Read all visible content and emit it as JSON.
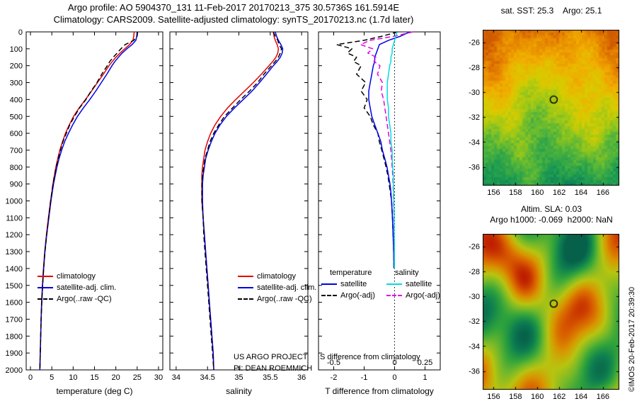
{
  "header": {
    "title_line1": "Argo profile: AO 5904370_131 11-Feb-2017 20170213_375 30.5736S 161.5914E",
    "title_line2": "Climatology: CARS2009. Satellite-adjusted climatology: synTS_20170213.nc (1.7d later)"
  },
  "credit": "©IMOS 20-Feb-2017 20:39:30",
  "project": {
    "line1": "US ARGO PROJECT",
    "line2": "PI: DEAN ROEMMICH"
  },
  "colors": {
    "climatology": "#e60000",
    "satellite": "#0000e6",
    "argo": "#000000",
    "sal_satellite": "#00dcdc",
    "sal_argo": "#e600e6"
  },
  "legends": {
    "profile": [
      "climatology",
      "satellite-adj. clim.",
      "Argo(..raw -QC)"
    ],
    "diff": {
      "col1_header": "temperature",
      "col2_header": "salinity",
      "row1": "satellite",
      "row2": "Argo(-adj)"
    }
  },
  "chart_data": [
    {
      "type": "line",
      "xlabel": "temperature (deg C)",
      "xlim": [
        -1,
        31
      ],
      "ylim": [
        0,
        2000
      ],
      "xticks": [
        0,
        5,
        10,
        15,
        20,
        25,
        30
      ],
      "yticks": [
        0,
        100,
        200,
        300,
        400,
        500,
        600,
        700,
        800,
        900,
        1000,
        1100,
        1200,
        1300,
        1400,
        1500,
        1600,
        1700,
        1800,
        1900,
        2000
      ],
      "depths": [
        0,
        25,
        50,
        75,
        100,
        125,
        150,
        175,
        200,
        250,
        300,
        350,
        400,
        450,
        500,
        550,
        600,
        650,
        700,
        750,
        800,
        850,
        900,
        950,
        1000,
        1100,
        1200,
        1300,
        1400,
        1500,
        1600,
        1700,
        1800,
        1900,
        2000
      ],
      "series": [
        {
          "name": "climatology",
          "color": "climatology",
          "dash": false,
          "values": [
            24.3,
            24.2,
            24.0,
            23.2,
            22.1,
            21.0,
            20.0,
            19.2,
            18.4,
            17.1,
            15.7,
            14.3,
            12.9,
            11.4,
            10.1,
            9.1,
            8.2,
            7.5,
            6.9,
            6.4,
            5.95,
            5.6,
            5.25,
            5.0,
            4.7,
            4.2,
            3.75,
            3.35,
            3.05,
            2.8,
            2.6,
            2.5,
            2.4,
            2.3,
            2.2
          ]
        },
        {
          "name": "satellite-adj. clim.",
          "color": "satellite",
          "dash": false,
          "values": [
            25.0,
            24.9,
            24.7,
            23.8,
            22.6,
            21.5,
            20.6,
            19.8,
            19.1,
            17.9,
            16.6,
            15.3,
            13.9,
            12.4,
            11.0,
            9.9,
            8.9,
            8.0,
            7.3,
            6.7,
            6.2,
            5.8,
            5.4,
            5.1,
            4.8,
            4.3,
            3.8,
            3.4,
            3.1,
            2.85,
            2.65,
            2.5,
            2.4,
            2.3,
            2.2
          ]
        },
        {
          "name": "Argo(..raw -QC)",
          "color": "argo",
          "dash": true,
          "values": [
            25.1,
            25.0,
            24.2,
            22.2,
            21.2,
            20.3,
            19.4,
            18.6,
            18.0,
            16.7,
            15.6,
            14.2,
            13.0,
            11.5,
            10.3,
            9.2,
            8.4,
            7.6,
            7.0,
            6.5,
            6.05,
            5.65,
            5.3,
            5.0,
            4.75,
            4.25,
            3.8,
            3.4,
            3.1,
            2.85,
            2.65,
            2.5,
            2.4,
            2.3,
            2.2
          ]
        }
      ]
    },
    {
      "type": "line",
      "xlabel": "salinity",
      "xlim": [
        33.9,
        36.1
      ],
      "ylim": [
        0,
        2000
      ],
      "xticks": [
        34,
        34.5,
        35,
        35.5,
        36
      ],
      "yticks": [
        0,
        100,
        200,
        300,
        400,
        500,
        600,
        700,
        800,
        900,
        1000,
        1100,
        1200,
        1300,
        1400,
        1500,
        1600,
        1700,
        1800,
        1900,
        2000
      ],
      "depths": [
        0,
        25,
        50,
        75,
        100,
        125,
        150,
        175,
        200,
        250,
        300,
        350,
        400,
        450,
        500,
        550,
        600,
        650,
        700,
        750,
        800,
        850,
        900,
        950,
        1000,
        1100,
        1200,
        1300,
        1400,
        1500,
        1600,
        1700,
        1800,
        1900,
        2000
      ],
      "series": [
        {
          "name": "climatology",
          "color": "climatology",
          "dash": false,
          "values": [
            35.55,
            35.56,
            35.58,
            35.61,
            35.63,
            35.62,
            35.59,
            35.54,
            35.48,
            35.36,
            35.23,
            35.09,
            34.95,
            34.82,
            34.71,
            34.62,
            34.55,
            34.5,
            34.46,
            34.44,
            34.42,
            34.41,
            34.41,
            34.41,
            34.41,
            34.43,
            34.45,
            34.47,
            34.49,
            34.51,
            34.53,
            34.55,
            34.57,
            34.59,
            34.6
          ]
        },
        {
          "name": "satellite-adj. clim.",
          "color": "satellite",
          "dash": false,
          "values": [
            35.58,
            35.6,
            35.63,
            35.67,
            35.7,
            35.69,
            35.66,
            35.61,
            35.55,
            35.44,
            35.33,
            35.21,
            35.07,
            34.93,
            34.8,
            34.7,
            34.62,
            34.56,
            34.51,
            34.47,
            34.45,
            34.43,
            34.42,
            34.42,
            34.42,
            34.43,
            34.45,
            34.47,
            34.49,
            34.51,
            34.53,
            34.55,
            34.57,
            34.59,
            34.6
          ]
        },
        {
          "name": "Argo(..raw -QC)",
          "color": "argo",
          "dash": true,
          "values": [
            35.55,
            35.58,
            35.62,
            35.64,
            35.68,
            35.66,
            35.63,
            35.58,
            35.52,
            35.4,
            35.3,
            35.17,
            35.03,
            34.9,
            34.77,
            34.68,
            34.6,
            34.54,
            34.5,
            34.46,
            34.44,
            34.42,
            34.41,
            34.41,
            34.41,
            34.43,
            34.44,
            34.46,
            34.48,
            34.5,
            34.52,
            34.54,
            34.56,
            34.58,
            34.6
          ]
        }
      ]
    },
    {
      "type": "line",
      "xlabel": "T difference from climatology",
      "s_label": "S difference from climatology",
      "xlim": [
        -2.5,
        1.5
      ],
      "ylim": [
        0,
        2000
      ],
      "xticks": [
        -2,
        -1,
        0,
        1
      ],
      "yticks": [
        0,
        100,
        200,
        300,
        400,
        500,
        600,
        700,
        800,
        900,
        1000,
        1100,
        1200,
        1300,
        1400,
        1500,
        1600,
        1700,
        1800,
        1900,
        2000
      ],
      "s_ticks": [
        -0.5,
        0,
        0.25
      ],
      "s_scale": 4,
      "depths": [
        0,
        25,
        50,
        75,
        100,
        125,
        150,
        175,
        200,
        250,
        300,
        350,
        400,
        450,
        500,
        550,
        600,
        650,
        700,
        750,
        800,
        850,
        900,
        950,
        1000,
        1100,
        1200,
        1300,
        1400
      ],
      "series": [
        {
          "name": "Argo(-adj) T",
          "color": "argo",
          "dash": true,
          "scale": 1,
          "values": [
            0.1,
            -0.4,
            -1.0,
            -1.9,
            -1.4,
            -1.55,
            -1.25,
            -1.35,
            -1.1,
            -1.25,
            -0.95,
            -1.1,
            -0.9,
            -1.0,
            -0.8,
            -0.7,
            -0.55,
            -0.5,
            -0.42,
            -0.35,
            -0.28,
            -0.22,
            -0.18,
            -0.14,
            -0.1,
            -0.07,
            -0.05,
            -0.03,
            -0.02
          ]
        },
        {
          "name": "satellite T",
          "color": "satellite",
          "dash": false,
          "scale": 1,
          "values": [
            0.5,
            0.2,
            -0.2,
            -0.5,
            -0.55,
            -0.6,
            -0.65,
            -0.65,
            -0.7,
            -0.75,
            -0.8,
            -0.85,
            -0.85,
            -0.8,
            -0.75,
            -0.65,
            -0.55,
            -0.45,
            -0.4,
            -0.32,
            -0.25,
            -0.2,
            -0.15,
            -0.12,
            -0.1,
            -0.07,
            -0.05,
            -0.03,
            -0.02
          ]
        },
        {
          "name": "Argo(-adj) S",
          "color": "sal_argo",
          "dash": true,
          "scale": 4,
          "values": [
            0.15,
            0.0,
            -0.2,
            -0.28,
            -0.18,
            -0.22,
            -0.15,
            -0.17,
            -0.12,
            -0.14,
            -0.1,
            -0.11,
            -0.09,
            -0.08,
            -0.07,
            -0.06,
            -0.05,
            -0.04,
            -0.03,
            -0.025,
            -0.02,
            -0.015,
            -0.012,
            -0.01,
            -0.008,
            -0.005,
            -0.004,
            -0.002,
            -0.001
          ]
        },
        {
          "name": "satellite S",
          "color": "sal_satellite",
          "dash": false,
          "scale": 4,
          "values": [
            0.02,
            0.01,
            0.0,
            -0.01,
            -0.02,
            -0.02,
            -0.03,
            -0.03,
            -0.04,
            -0.05,
            -0.06,
            -0.06,
            -0.06,
            -0.05,
            -0.05,
            -0.04,
            -0.03,
            -0.03,
            -0.02,
            -0.02,
            -0.015,
            -0.01,
            -0.01,
            -0.008,
            -0.006,
            -0.004,
            -0.003,
            -0.002,
            -0.001
          ]
        }
      ]
    },
    {
      "type": "heatmap",
      "title": "sat. SST: 25.3    Argo: 25.1",
      "xlim": [
        155,
        167.5
      ],
      "ylim": [
        -37.5,
        -25
      ],
      "xticks": [
        156,
        158,
        160,
        162,
        164,
        166
      ],
      "yticks": [
        -26,
        -28,
        -30,
        -32,
        -34,
        -36
      ],
      "marker": {
        "lon": 161.5,
        "lat": -30.6
      },
      "palette": [
        "#0c7a5a",
        "#1e9c50",
        "#50b43c",
        "#9cc818",
        "#d8cc00",
        "#f0ae00",
        "#e88a00",
        "#d05a00"
      ]
    },
    {
      "type": "heatmap",
      "title": "Altim. SLA: 0.03",
      "subtitle": "Argo h1000: -0.069  h2000: NaN",
      "xlim": [
        155,
        167.5
      ],
      "ylim": [
        -37.5,
        -25
      ],
      "xticks": [
        156,
        158,
        160,
        162,
        164,
        166
      ],
      "yticks": [
        -26,
        -28,
        -30,
        -32,
        -34,
        -36
      ],
      "marker": {
        "lon": 161.5,
        "lat": -30.6
      },
      "palette": [
        "#06604a",
        "#0f8050",
        "#2fa33c",
        "#74b92a",
        "#b8c410",
        "#d89600",
        "#d85a00",
        "#bc1800"
      ]
    }
  ]
}
